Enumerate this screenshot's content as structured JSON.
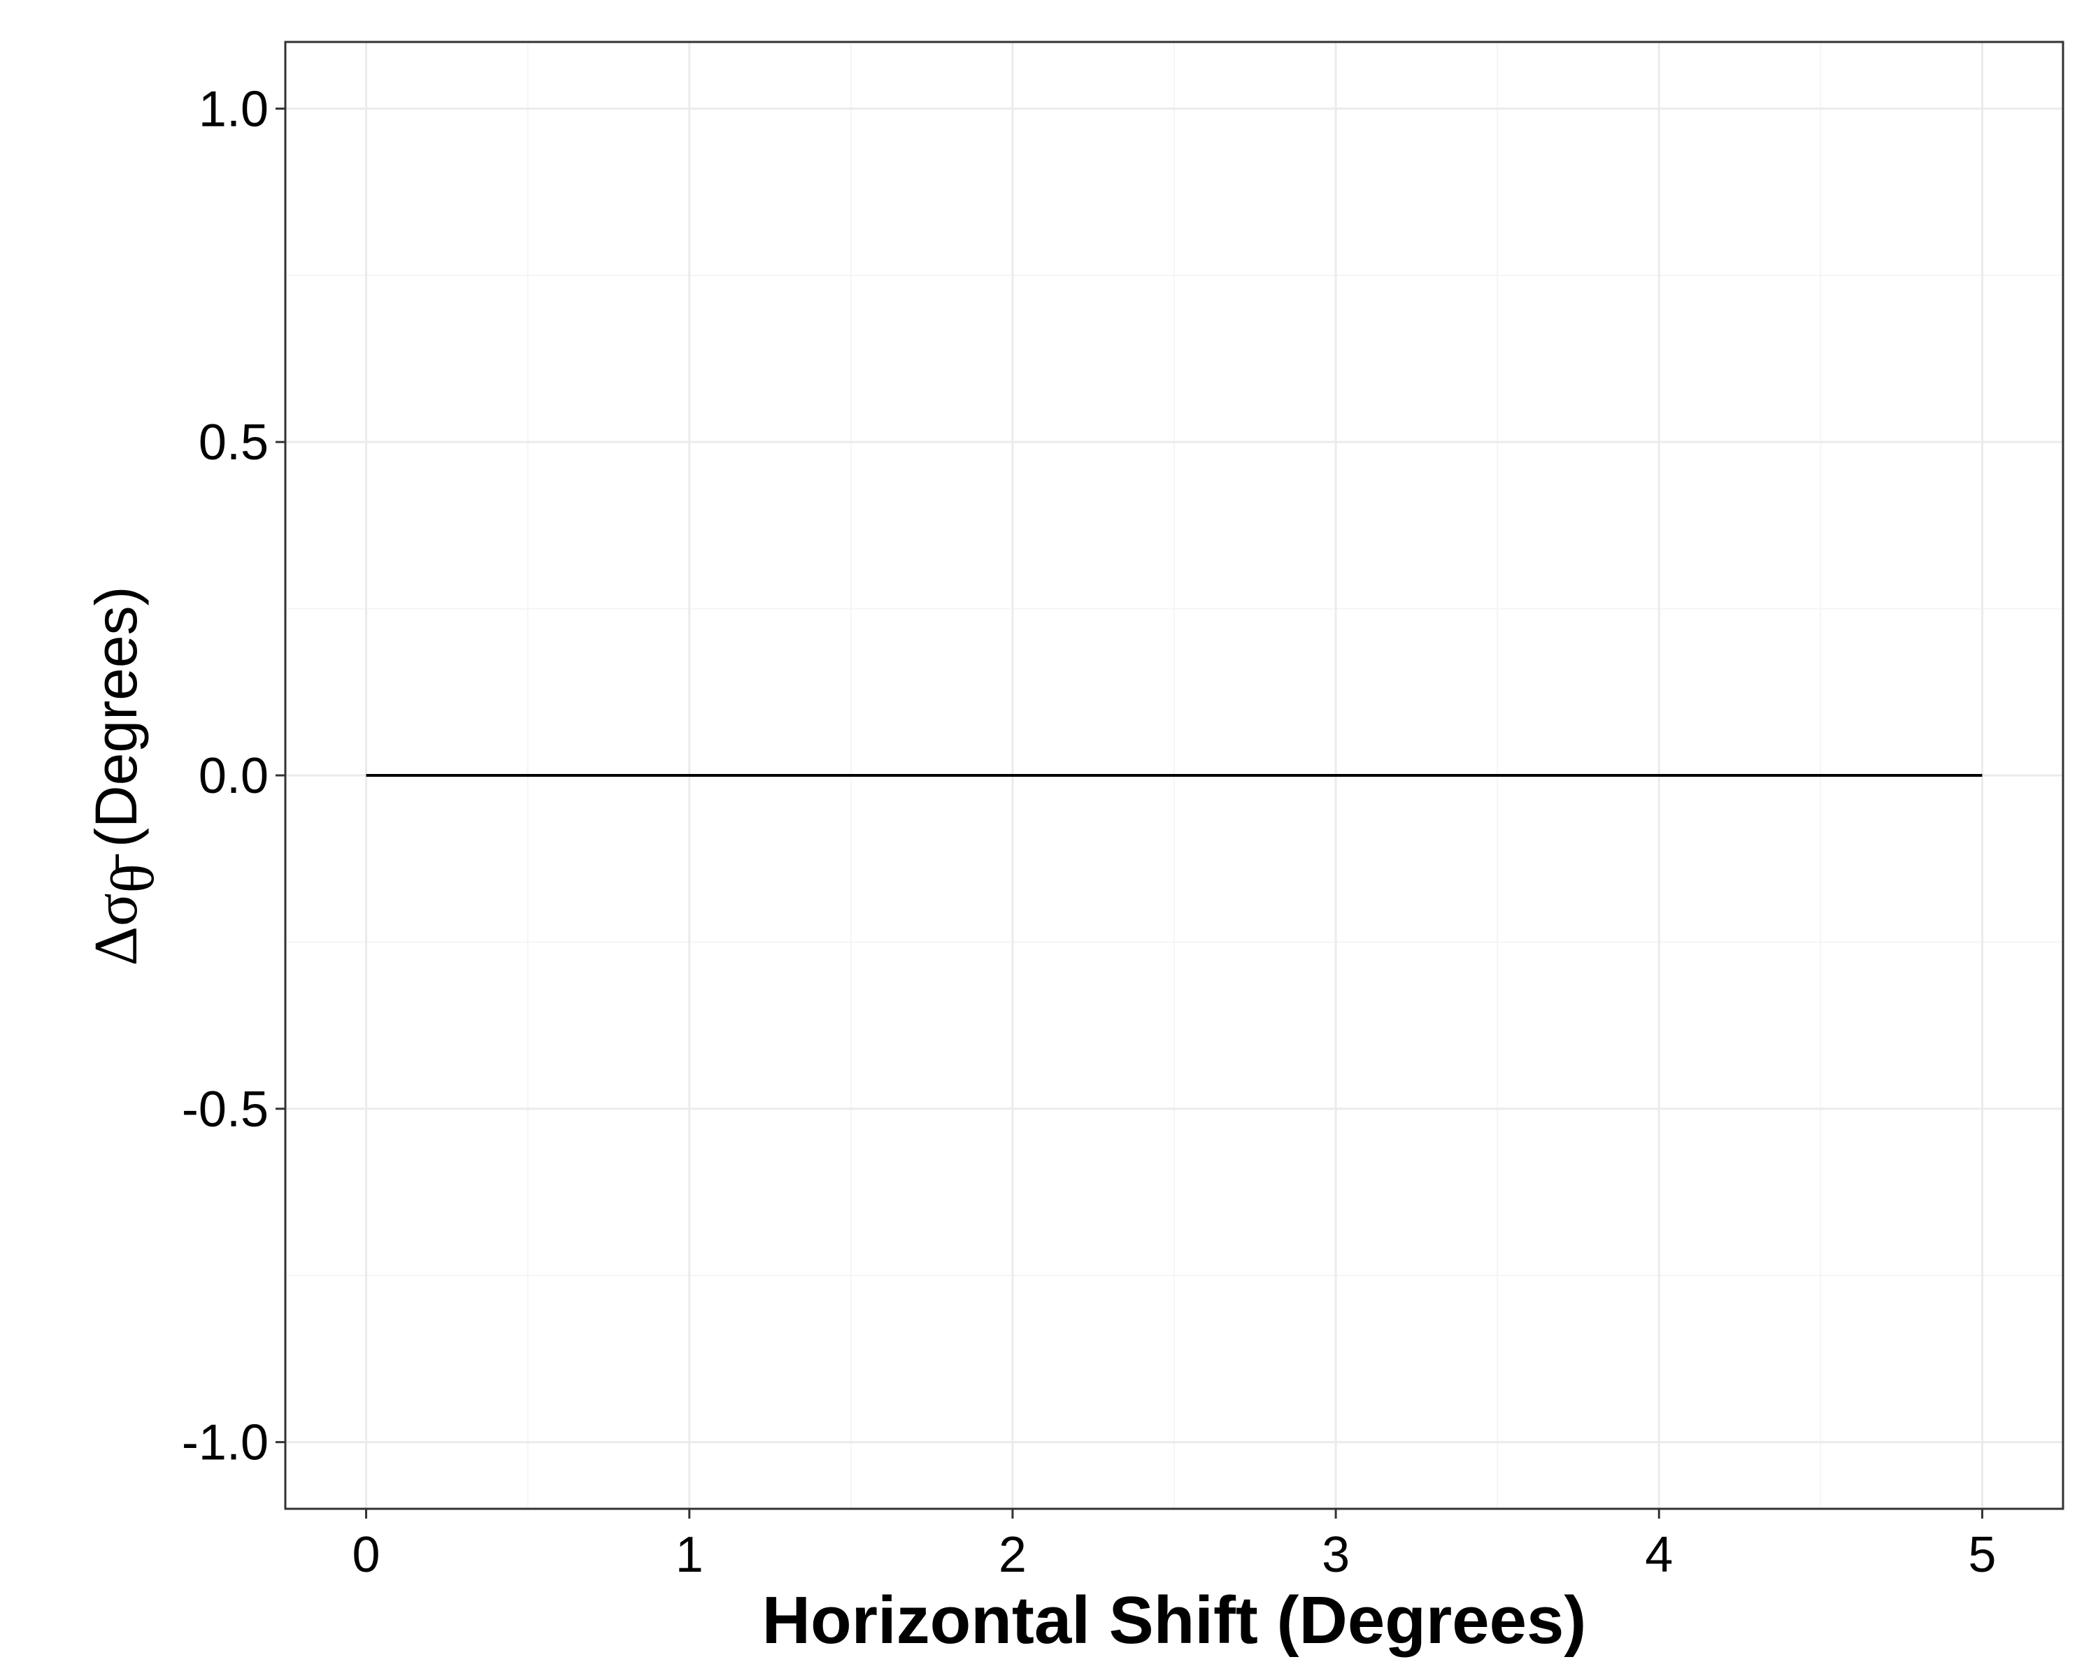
{
  "chart_data": {
    "type": "line",
    "title": "",
    "xlabel": "Horizontal Shift (Degrees)",
    "ylabel": {
      "symbol": "Δσ",
      "subscript": "θ̄",
      "units": " (Degrees)"
    },
    "xlim": [
      -0.25,
      5.25
    ],
    "ylim": [
      -1.1,
      1.1
    ],
    "x_ticks": [
      0,
      1,
      2,
      3,
      4,
      5
    ],
    "x_tick_labels": [
      "0",
      "1",
      "2",
      "3",
      "4",
      "5"
    ],
    "y_ticks": [
      -1.0,
      -0.5,
      0.0,
      0.5,
      1.0
    ],
    "y_tick_labels": [
      "-1.0",
      "-0.5",
      "0.0",
      "0.5",
      "1.0"
    ],
    "grid": true,
    "series": [
      {
        "x": [
          0,
          1,
          2,
          3,
          4,
          5
        ],
        "y": [
          0,
          0,
          0,
          0,
          0,
          0
        ]
      }
    ]
  },
  "colors": {
    "background": "#ffffff",
    "panel_border": "#333333",
    "grid_major": "#ebebeb",
    "grid_minor": "#f5f5f5",
    "line": "#000000",
    "text": "#000000"
  }
}
